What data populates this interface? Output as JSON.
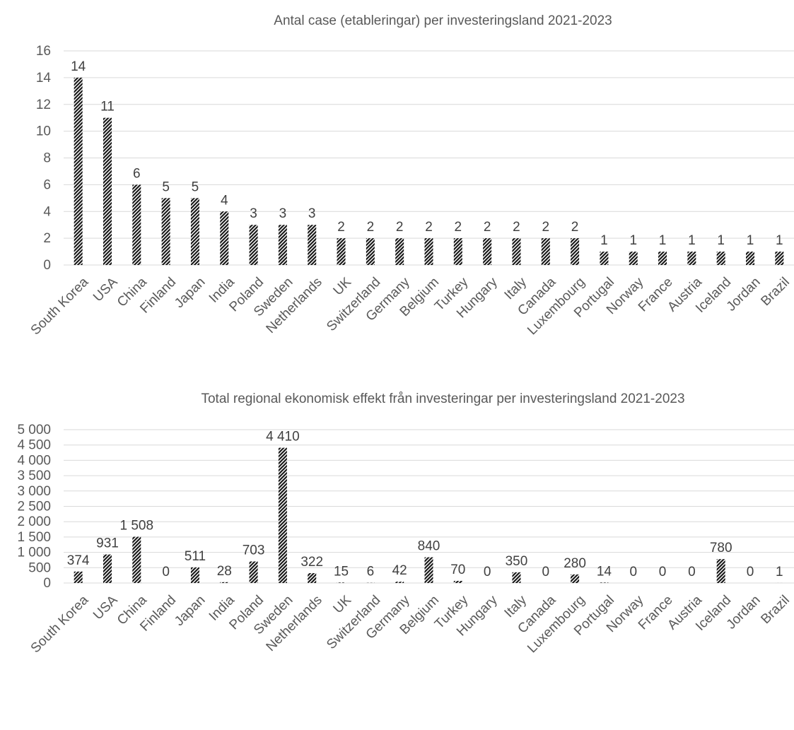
{
  "colors": {
    "bar": "#1a1a1a",
    "bar_background": "#ffffff",
    "grid": "#d9d9d9",
    "text": "#595959"
  },
  "chart_data": [
    {
      "type": "bar",
      "title": "Antal case (etableringar) per investeringsland 2021-2023",
      "xlabel": "",
      "ylabel": "",
      "ylim": [
        0,
        16
      ],
      "yticks": [
        0,
        2,
        4,
        6,
        8,
        10,
        12,
        14,
        16
      ],
      "ytick_labels": [
        "0",
        "2",
        "4",
        "6",
        "8",
        "10",
        "12",
        "14",
        "16"
      ],
      "grid": true,
      "legend": "none",
      "bar_pattern": "diagonal-hatch",
      "categories": [
        "South Korea",
        "USA",
        "China",
        "Finland",
        "Japan",
        "India",
        "Poland",
        "Sweden",
        "Netherlands",
        "UK",
        "Switzerland",
        "Germany",
        "Belgium",
        "Turkey",
        "Hungary",
        "Italy",
        "Canada",
        "Luxembourg",
        "Portugal",
        "Norway",
        "France",
        "Austria",
        "Iceland",
        "Jordan",
        "Brazil"
      ],
      "values": [
        14,
        11,
        6,
        5,
        5,
        4,
        3,
        3,
        3,
        2,
        2,
        2,
        2,
        2,
        2,
        2,
        2,
        2,
        1,
        1,
        1,
        1,
        1,
        1,
        1
      ],
      "data_labels": [
        "14",
        "11",
        "6",
        "5",
        "5",
        "4",
        "3",
        "3",
        "3",
        "2",
        "2",
        "2",
        "2",
        "2",
        "2",
        "2",
        "2",
        "2",
        "1",
        "1",
        "1",
        "1",
        "1",
        "1",
        "1"
      ]
    },
    {
      "type": "bar",
      "title": "Total regional ekonomisk effekt från investeringar per investeringsland 2021-2023",
      "xlabel": "",
      "ylabel": "",
      "ylim": [
        0,
        5000
      ],
      "yticks": [
        0,
        500,
        1000,
        1500,
        2000,
        2500,
        3000,
        3500,
        4000,
        4500,
        5000
      ],
      "ytick_labels": [
        "0",
        "500",
        "1 000",
        "1 500",
        "2 000",
        "2 500",
        "3 000",
        "3 500",
        "4 000",
        "4 500",
        "5 000"
      ],
      "grid": true,
      "legend": "none",
      "bar_pattern": "diagonal-hatch",
      "categories": [
        "South Korea",
        "USA",
        "China",
        "Finland",
        "Japan",
        "India",
        "Poland",
        "Sweden",
        "Netherlands",
        "UK",
        "Switzerland",
        "Germany",
        "Belgium",
        "Turkey",
        "Hungary",
        "Italy",
        "Canada",
        "Luxembourg",
        "Portugal",
        "Norway",
        "France",
        "Austria",
        "Iceland",
        "Jordan",
        "Brazil"
      ],
      "values": [
        374,
        931,
        1508,
        0,
        511,
        28,
        703,
        4410,
        322,
        15,
        6,
        42,
        840,
        70,
        0,
        350,
        0,
        280,
        14,
        0,
        0,
        0,
        780,
        0,
        1
      ],
      "data_labels": [
        "374",
        "931",
        "1 508",
        "0",
        "511",
        "28",
        "703",
        "4 410",
        "322",
        "15",
        "6",
        "42",
        "840",
        "70",
        "0",
        "350",
        "0",
        "280",
        "14",
        "0",
        "0",
        "0",
        "780",
        "0",
        "1"
      ]
    }
  ]
}
